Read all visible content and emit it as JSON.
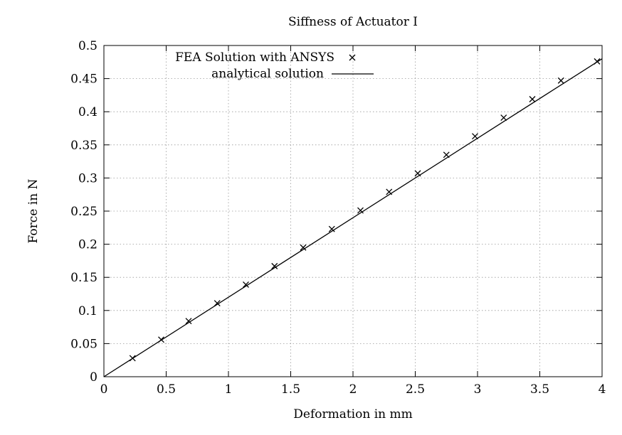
{
  "chart_data": {
    "type": "line",
    "title": "Siffness of Actuator I",
    "xlabel": "Deformation in mm",
    "ylabel": "Force in N",
    "xlim": [
      0,
      4
    ],
    "ylim": [
      0,
      0.5
    ],
    "x_ticks": [
      0,
      0.5,
      1,
      1.5,
      2,
      2.5,
      3,
      3.5,
      4
    ],
    "x_tick_labels": [
      "0",
      "0.5",
      "1",
      "1.5",
      "2",
      "2.5",
      "3",
      "3.5",
      "4"
    ],
    "y_ticks": [
      0,
      0.05,
      0.1,
      0.15,
      0.2,
      0.25,
      0.3,
      0.35,
      0.4,
      0.45,
      0.5
    ],
    "y_tick_labels": [
      "0",
      "0.05",
      "0.1",
      "0.15",
      "0.2",
      "0.25",
      "0.3",
      "0.35",
      "0.4",
      "0.45",
      "0.5"
    ],
    "grid": true,
    "legend_position": "top-left",
    "series": [
      {
        "name": "FEA Solution with ANSYS",
        "style": "markers",
        "marker": "x",
        "color": "#000000",
        "x": [
          0.23,
          0.46,
          0.68,
          0.91,
          1.14,
          1.37,
          1.6,
          1.83,
          2.06,
          2.29,
          2.52,
          2.75,
          2.98,
          3.21,
          3.44,
          3.67,
          3.96
        ],
        "y": [
          0.028,
          0.056,
          0.084,
          0.111,
          0.139,
          0.167,
          0.195,
          0.223,
          0.251,
          0.279,
          0.307,
          0.335,
          0.363,
          0.391,
          0.419,
          0.447,
          0.476
        ]
      },
      {
        "name": "analytical solution",
        "style": "line",
        "color": "#000000",
        "x": [
          0,
          4
        ],
        "y": [
          0,
          0.48
        ]
      }
    ]
  }
}
